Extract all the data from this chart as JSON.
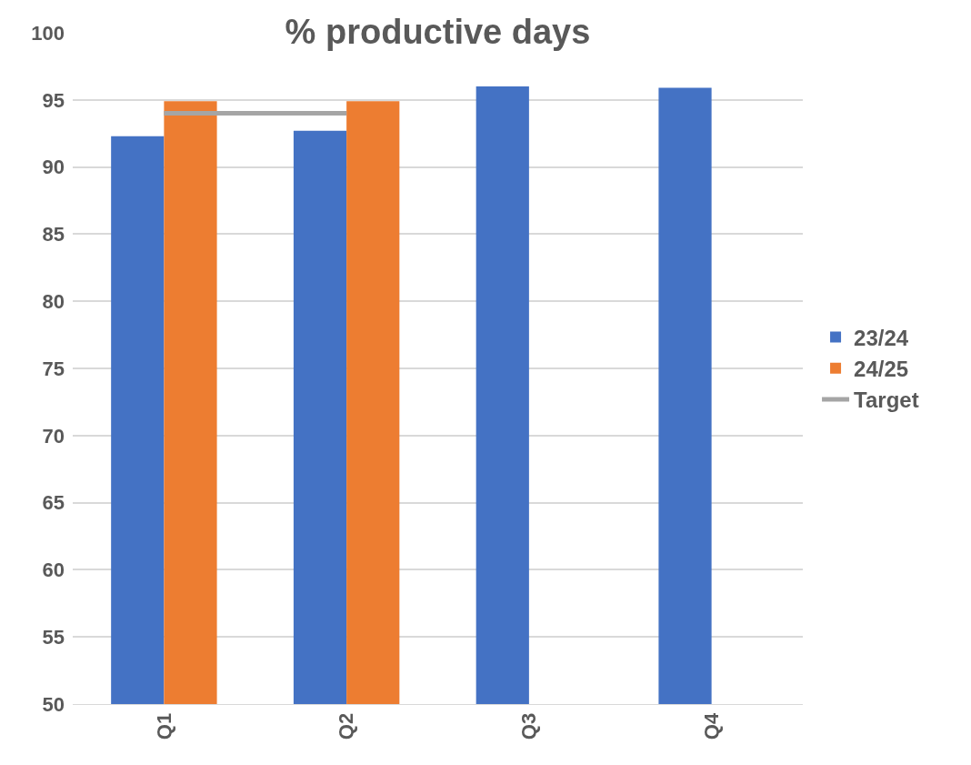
{
  "chart_data": {
    "type": "bar",
    "title": "% productive days",
    "categories": [
      "Q1",
      "Q2",
      "Q3",
      "Q4"
    ],
    "series": [
      {
        "name": "23/24",
        "color": "#4472c4",
        "values": [
          92.3,
          92.7,
          96.0,
          95.9
        ]
      },
      {
        "name": "24/25",
        "color": "#ed7d31",
        "values": [
          94.9,
          94.9,
          null,
          null
        ]
      },
      {
        "name": "Target",
        "type": "line",
        "color": "#a5a5a5",
        "values": [
          94,
          94,
          null,
          null
        ]
      }
    ],
    "ylim": [
      50,
      100
    ],
    "yticks": [
      50,
      55,
      60,
      65,
      70,
      75,
      80,
      85,
      90,
      95,
      100
    ],
    "grid": "y",
    "legend": "right",
    "marker": "none",
    "line_style": "solid"
  }
}
